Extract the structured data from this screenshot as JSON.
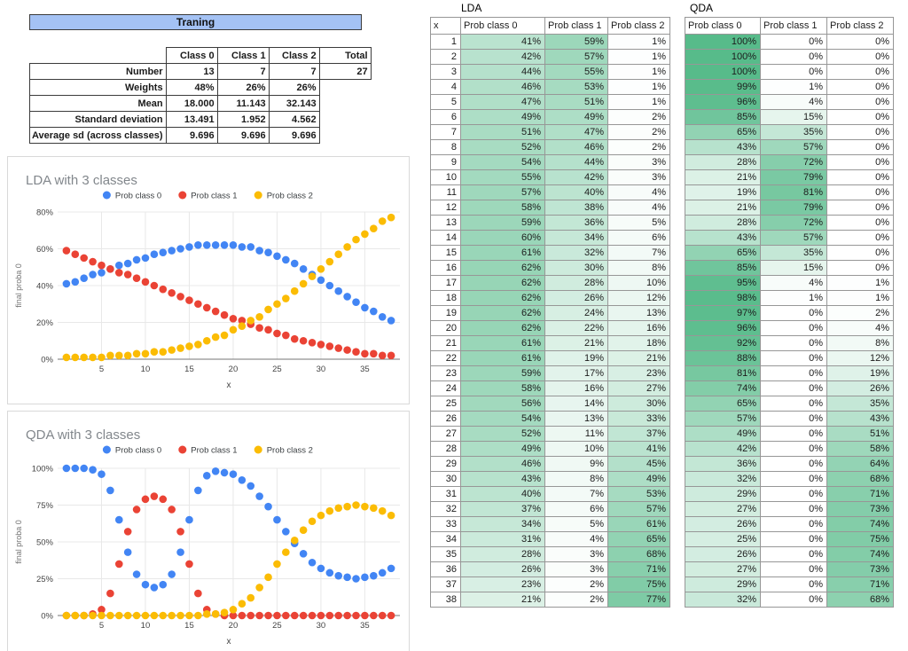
{
  "training": {
    "banner": "Traning",
    "table": {
      "col_headers": [
        "Class 0",
        "Class 1",
        "Class 2",
        "Total"
      ],
      "rows": [
        {
          "label": "Number",
          "values": [
            "13",
            "7",
            "7"
          ],
          "total": "27"
        },
        {
          "label": "Weights",
          "values": [
            "48%",
            "26%",
            "26%"
          ],
          "total": ""
        },
        {
          "label": "Mean",
          "values": [
            "18.000",
            "11.143",
            "32.143"
          ],
          "total": ""
        },
        {
          "label": "Standard deviation",
          "values": [
            "13.491",
            "1.952",
            "4.562"
          ],
          "total": ""
        },
        {
          "label": "Average sd (across classes)",
          "values": [
            "9.696",
            "9.696",
            "9.696"
          ],
          "total": ""
        }
      ]
    }
  },
  "colors": {
    "class0_blue": "#4285F4",
    "class1_red": "#EA4335",
    "class2_yellow": "#FBBC04",
    "heat_max_green": "#57BB8A",
    "banner_blue": "#A4C2F4"
  },
  "tables": {
    "lda": {
      "title": "LDA",
      "columns": [
        "x",
        "Prob class 0",
        "Prob class 1",
        "Prob class 2"
      ],
      "show_x": true,
      "chart_ref": 0
    },
    "qda": {
      "title": "QDA",
      "columns": [
        "Prob class 0",
        "Prob class 1",
        "Prob class 2"
      ],
      "show_x": false,
      "chart_ref": 1
    }
  },
  "chart_data": [
    {
      "type": "scatter",
      "title": "LDA with 3 classes",
      "xlabel": "x",
      "ylabel": "final proba 0",
      "grid": true,
      "legend_position": "top",
      "xticks": [
        5,
        10,
        15,
        20,
        25,
        30,
        35
      ],
      "yticks_pct": [
        0,
        20,
        40,
        60,
        80
      ],
      "ylim": [
        0,
        0.8
      ],
      "x": [
        1,
        2,
        3,
        4,
        5,
        6,
        7,
        8,
        9,
        10,
        11,
        12,
        13,
        14,
        15,
        16,
        17,
        18,
        19,
        20,
        21,
        22,
        23,
        24,
        25,
        26,
        27,
        28,
        29,
        30,
        31,
        32,
        33,
        34,
        35,
        36,
        37,
        38
      ],
      "series": [
        {
          "name": "Prob class 0",
          "color": "#4285F4",
          "values_pct": [
            41,
            42,
            44,
            46,
            47,
            49,
            51,
            52,
            54,
            55,
            57,
            58,
            59,
            60,
            61,
            62,
            62,
            62,
            62,
            62,
            61,
            61,
            59,
            58,
            56,
            54,
            52,
            49,
            46,
            43,
            40,
            37,
            34,
            31,
            28,
            26,
            23,
            21
          ]
        },
        {
          "name": "Prob class 1",
          "color": "#EA4335",
          "values_pct": [
            59,
            57,
            55,
            53,
            51,
            49,
            47,
            46,
            44,
            42,
            40,
            38,
            36,
            34,
            32,
            30,
            28,
            26,
            24,
            22,
            21,
            19,
            17,
            16,
            14,
            13,
            11,
            10,
            9,
            8,
            7,
            6,
            5,
            4,
            3,
            3,
            2,
            2
          ]
        },
        {
          "name": "Prob class 2",
          "color": "#FBBC04",
          "values_pct": [
            1,
            1,
            1,
            1,
            1,
            2,
            2,
            2,
            3,
            3,
            4,
            4,
            5,
            6,
            7,
            8,
            10,
            12,
            13,
            16,
            18,
            21,
            23,
            27,
            30,
            33,
            37,
            41,
            45,
            49,
            53,
            57,
            61,
            65,
            68,
            71,
            75,
            77
          ]
        }
      ]
    },
    {
      "type": "scatter",
      "title": "QDA with 3 classes",
      "xlabel": "x",
      "ylabel": "final proba 0",
      "grid": true,
      "legend_position": "top",
      "xticks": [
        5,
        10,
        15,
        20,
        25,
        30,
        35
      ],
      "yticks_pct": [
        0,
        25,
        50,
        75,
        100
      ],
      "ylim": [
        0,
        1
      ],
      "x": [
        1,
        2,
        3,
        4,
        5,
        6,
        7,
        8,
        9,
        10,
        11,
        12,
        13,
        14,
        15,
        16,
        17,
        18,
        19,
        20,
        21,
        22,
        23,
        24,
        25,
        26,
        27,
        28,
        29,
        30,
        31,
        32,
        33,
        34,
        35,
        36,
        37,
        38
      ],
      "series": [
        {
          "name": "Prob class 0",
          "color": "#4285F4",
          "values_pct": [
            100,
            100,
            100,
            99,
            96,
            85,
            65,
            43,
            28,
            21,
            19,
            21,
            28,
            43,
            65,
            85,
            95,
            98,
            97,
            96,
            92,
            88,
            81,
            74,
            65,
            57,
            49,
            42,
            36,
            32,
            29,
            27,
            26,
            25,
            26,
            27,
            29,
            32
          ]
        },
        {
          "name": "Prob class 1",
          "color": "#EA4335",
          "values_pct": [
            0,
            0,
            0,
            1,
            4,
            15,
            35,
            57,
            72,
            79,
            81,
            79,
            72,
            57,
            35,
            15,
            4,
            1,
            0,
            0,
            0,
            0,
            0,
            0,
            0,
            0,
            0,
            0,
            0,
            0,
            0,
            0,
            0,
            0,
            0,
            0,
            0,
            0
          ]
        },
        {
          "name": "Prob class 2",
          "color": "#FBBC04",
          "values_pct": [
            0,
            0,
            0,
            0,
            0,
            0,
            0,
            0,
            0,
            0,
            0,
            0,
            0,
            0,
            0,
            0,
            1,
            1,
            2,
            4,
            8,
            12,
            19,
            26,
            35,
            43,
            51,
            58,
            64,
            68,
            71,
            73,
            74,
            75,
            74,
            73,
            71,
            68
          ]
        }
      ]
    }
  ]
}
